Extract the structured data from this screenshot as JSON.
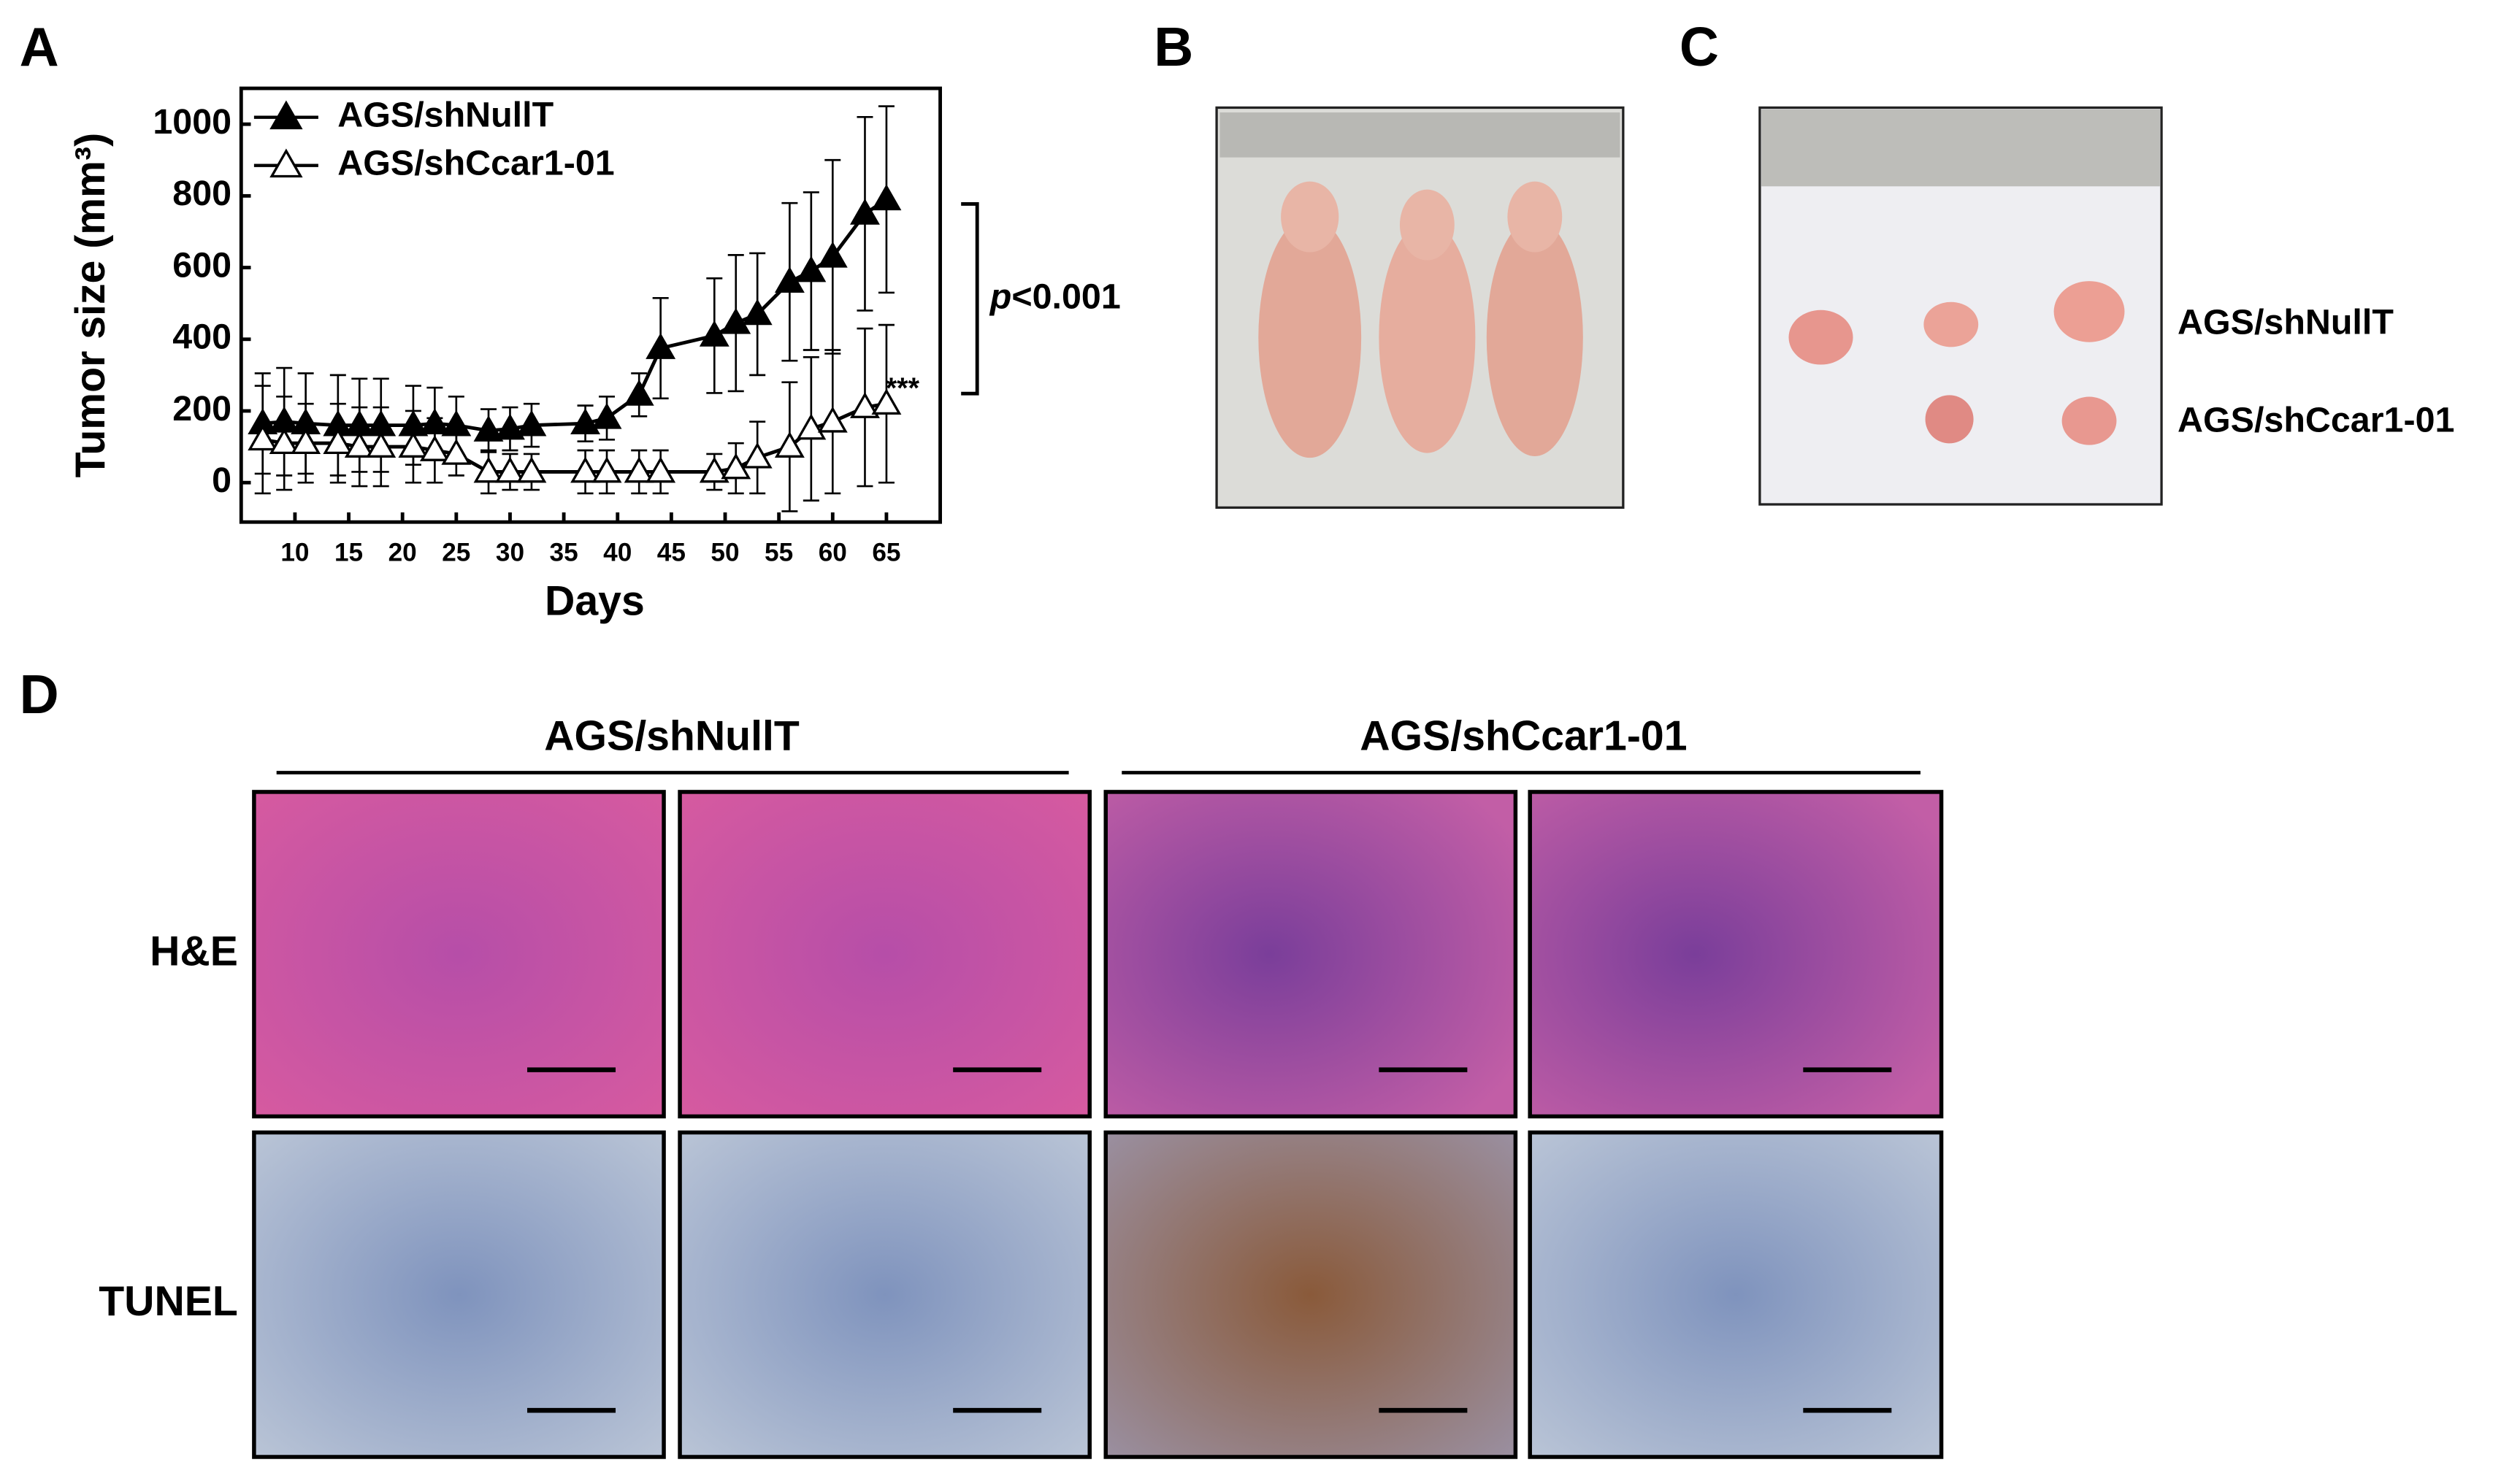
{
  "chart_data": {
    "type": "line",
    "x_label": "Days",
    "y_label": "Tumor size (mm³)",
    "xlim": [
      5,
      70
    ],
    "xticks": [
      10,
      15,
      20,
      25,
      30,
      35,
      40,
      45,
      50,
      55,
      60,
      65
    ],
    "ylim": [
      -110,
      1100
    ],
    "yticks": [
      0,
      200,
      400,
      600,
      800,
      1000
    ],
    "x": [
      7,
      9,
      11,
      14,
      16,
      18,
      21,
      23,
      25,
      28,
      30,
      32,
      37,
      39,
      42,
      44,
      49,
      51,
      53,
      56,
      58,
      60,
      63,
      65
    ],
    "series": [
      {
        "name": "AGS/shNullT",
        "color": "#000000",
        "marker": "filled-triangle",
        "values": [
          165,
          170,
          165,
          160,
          160,
          160,
          160,
          165,
          160,
          145,
          150,
          160,
          165,
          180,
          245,
          375,
          410,
          445,
          470,
          560,
          590,
          630,
          750,
          790
        ],
        "errors": [
          140,
          150,
          140,
          140,
          130,
          130,
          110,
          100,
          80,
          60,
          60,
          60,
          50,
          60,
          60,
          140,
          160,
          190,
          170,
          220,
          220,
          270,
          270,
          260
        ]
      },
      {
        "name": "AGS/shCcar1-01",
        "color": "#000000",
        "marker": "open-triangle",
        "values": [
          120,
          110,
          110,
          110,
          100,
          100,
          100,
          90,
          80,
          30,
          30,
          30,
          30,
          30,
          30,
          30,
          30,
          40,
          70,
          100,
          150,
          170,
          210,
          220
        ],
        "errors": [
          150,
          130,
          110,
          110,
          110,
          110,
          100,
          90,
          60,
          60,
          50,
          50,
          60,
          60,
          60,
          60,
          50,
          70,
          100,
          180,
          200,
          200,
          220,
          220
        ]
      }
    ],
    "annotation_italic": "p",
    "annotation": "<0.001",
    "significance": "***"
  },
  "panels": {
    "a": "A",
    "b": "B",
    "c": "C",
    "d": "D",
    "c_rows": [
      "AGS/shNullT",
      "AGS/shCcar1-01"
    ],
    "d_groups": [
      "AGS/shNullT",
      "AGS/shCcar1-01"
    ],
    "d_rows": [
      "H&E",
      "TUNEL"
    ]
  }
}
